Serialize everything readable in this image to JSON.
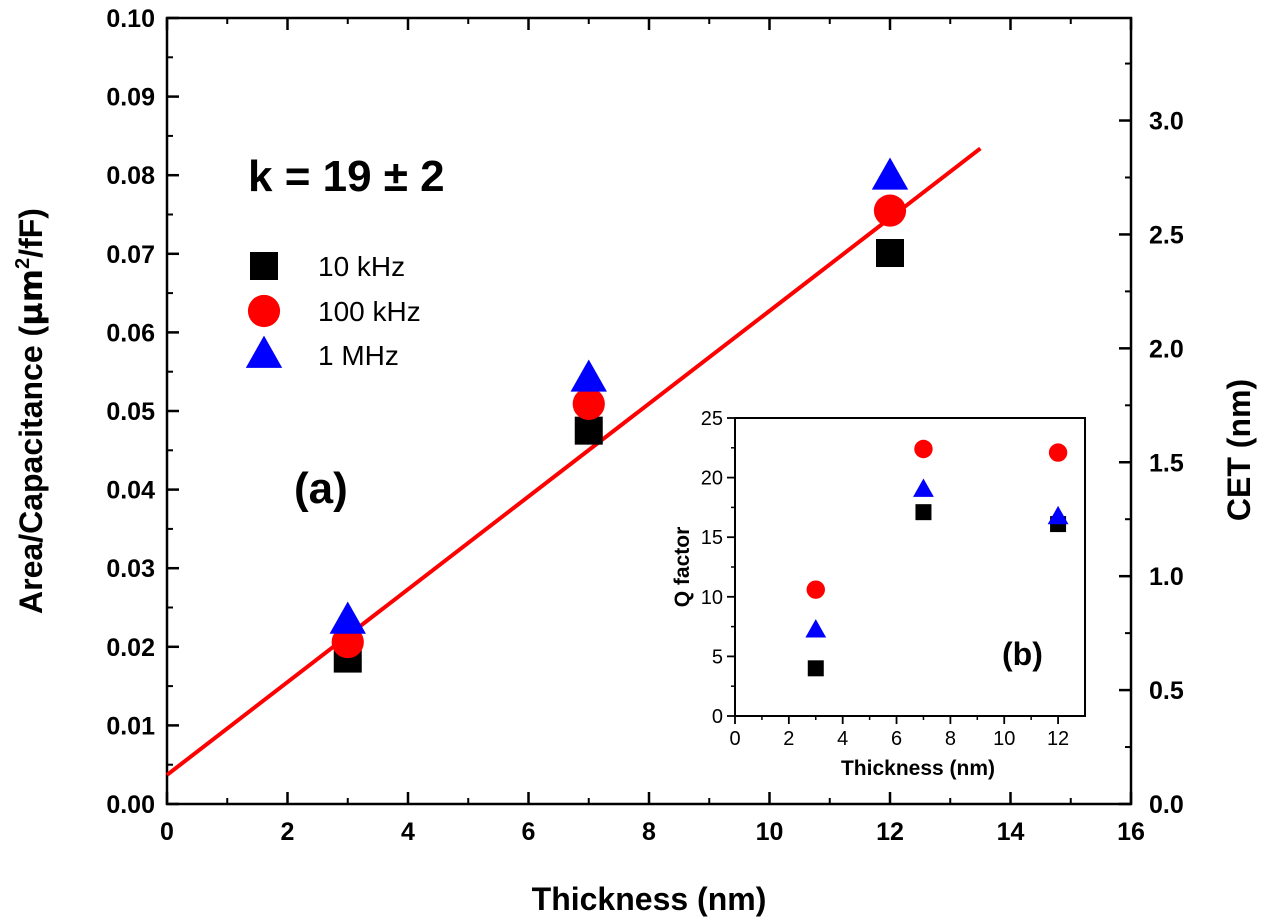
{
  "chart_data": [
    {
      "id": "main",
      "type": "scatter",
      "panel_label": "(a)",
      "annotation": "k = 19 ± 2",
      "xlabel": "Thickness (nm)",
      "ylabel": "Area/Capacitance (µm²/fF)",
      "ylabel_parts": {
        "pre": "Area/Capacitance (",
        "mu": "µm",
        "sup": "2",
        "post": "/fF)"
      },
      "y2label": "CET (nm)",
      "xlim": [
        0,
        16
      ],
      "ylim": [
        0.0,
        0.1
      ],
      "y2lim": [
        0.0,
        3.45
      ],
      "xticks": [
        "0",
        "2",
        "4",
        "6",
        "8",
        "10",
        "12",
        "14",
        "16"
      ],
      "yticks": [
        "0.00",
        "0.01",
        "0.02",
        "0.03",
        "0.04",
        "0.05",
        "0.06",
        "0.07",
        "0.08",
        "0.09",
        "0.10"
      ],
      "y2ticks": [
        "0.0",
        "0.5",
        "1.0",
        "1.5",
        "2.0",
        "2.5",
        "3.0"
      ],
      "legend_position": "upper-left",
      "series": [
        {
          "name": "10 kHz",
          "marker": "square",
          "color": "#000000",
          "x": [
            3,
            7,
            12
          ],
          "y": [
            0.0185,
            0.0475,
            0.0701
          ]
        },
        {
          "name": "100 kHz",
          "marker": "circle",
          "color": "#ff0000",
          "x": [
            3,
            7,
            12
          ],
          "y": [
            0.0206,
            0.0509,
            0.0755
          ]
        },
        {
          "name": "1 MHz",
          "marker": "triangle",
          "color": "#0000ff",
          "x": [
            3,
            7,
            12
          ],
          "y": [
            0.0233,
            0.0541,
            0.0798
          ]
        }
      ],
      "fit_line": {
        "color": "#ff0000",
        "x": [
          0,
          13.5
        ],
        "y": [
          0.0037,
          0.0834
        ]
      }
    },
    {
      "id": "inset",
      "type": "scatter",
      "panel_label": "(b)",
      "xlabel": "Thickness (nm)",
      "ylabel": "Q factor",
      "xlim": [
        0,
        13
      ],
      "ylim": [
        0,
        25
      ],
      "xticks": [
        "0",
        "2",
        "4",
        "6",
        "8",
        "10",
        "12"
      ],
      "yticks": [
        "0",
        "5",
        "10",
        "15",
        "20",
        "25"
      ],
      "series": [
        {
          "name": "10 kHz",
          "marker": "square",
          "color": "#000000",
          "x": [
            3,
            7,
            12
          ],
          "y": [
            4.0,
            17.1,
            16.1
          ]
        },
        {
          "name": "100 kHz",
          "marker": "circle",
          "color": "#ff0000",
          "x": [
            3,
            7,
            12
          ],
          "y": [
            10.6,
            22.4,
            22.1
          ]
        },
        {
          "name": "1 MHz",
          "marker": "triangle",
          "color": "#0000ff",
          "x": [
            3,
            7,
            12
          ],
          "y": [
            7.2,
            19.0,
            16.7
          ]
        }
      ]
    }
  ]
}
